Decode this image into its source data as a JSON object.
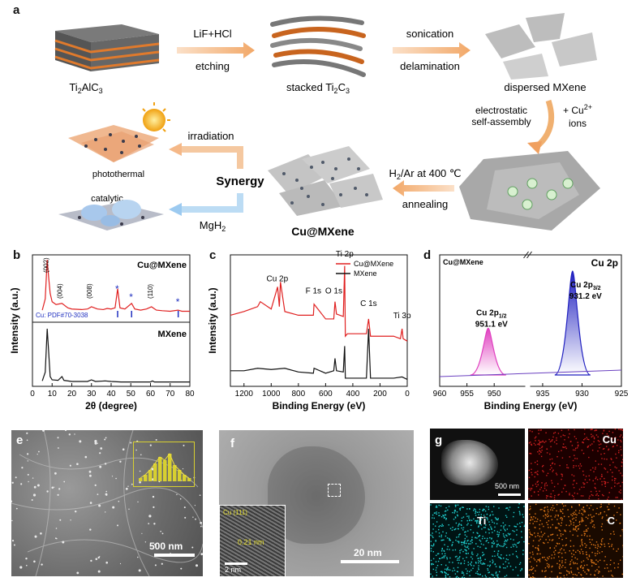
{
  "panel_a": {
    "label": "a",
    "ti2alc3": "Ti",
    "ti2alc3_sub": "2",
    "ti2alc3_rest": "AlC",
    "ti2alc3_sub2": "3",
    "etch_top": "LiF+HCl",
    "etch_bottom": "etching",
    "stacked_prefix": "stacked Ti",
    "stacked_sub1": "2",
    "stacked_mid": "C",
    "stacked_sub2": "3",
    "son_top": "sonication",
    "son_bottom": "delamination",
    "dispersed": "dispersed MXene",
    "elec1": "electrostatic",
    "elec2": "self-assembly",
    "cu_plus": "+ Cu",
    "cu_sup": "2+",
    "ions": "ions",
    "anneal_top_prefix": "H",
    "anneal_top_sub": "2",
    "anneal_top_rest": "/Ar at 400 ℃",
    "anneal_bottom": "annealing",
    "product": "Cu@MXene",
    "synergy": "Synergy",
    "irradiation": "irradiation",
    "mgh2_prefix": "MgH",
    "mgh2_sub": "2",
    "photothermal": "photothermal",
    "catalytic": "catalytic"
  },
  "panel_b": {
    "label": "b",
    "chart_data": {
      "type": "line",
      "xlabel": "2θ (degree)",
      "ylabel": "Intensity (a.u.)",
      "xlim": [
        0,
        80
      ],
      "xticks": [
        "0",
        "10",
        "20",
        "30",
        "40",
        "50",
        "60",
        "70",
        "80"
      ],
      "series": [
        {
          "name": "Cu@MXene",
          "color": "#e02020",
          "x": [
            5,
            6.5,
            7.5,
            8.2,
            9,
            10,
            12,
            15,
            18,
            20,
            25,
            28,
            30,
            33,
            36,
            38,
            40,
            42,
            43.3,
            44.5,
            47,
            50.4,
            52,
            55,
            58,
            60.5,
            63,
            66,
            70,
            74,
            76,
            80
          ],
          "y": [
            10,
            30,
            100,
            70,
            40,
            25,
            20,
            22,
            14,
            12,
            11,
            12,
            16,
            12,
            11,
            13,
            12,
            14,
            48,
            14,
            12,
            22,
            12,
            10,
            12,
            16,
            10,
            9,
            8,
            10,
            8,
            8
          ]
        },
        {
          "name": "MXene",
          "color": "#111111",
          "x": [
            5,
            6.5,
            7.5,
            8.2,
            9,
            10,
            13,
            15,
            16,
            20,
            28,
            30,
            32,
            37,
            40,
            45,
            60,
            61,
            62,
            70,
            80
          ],
          "y": [
            4,
            20,
            100,
            60,
            12,
            6,
            5,
            12,
            5,
            3,
            3,
            6,
            3,
            4,
            3,
            2,
            2,
            4,
            2,
            2,
            2
          ]
        }
      ],
      "annotations": [
        "(002)",
        "(004)",
        "(008)",
        "(110)"
      ],
      "reference": {
        "label": "Cu:  PDF#70-3038",
        "x": [
          43.3,
          50.4,
          74.1
        ]
      }
    }
  },
  "panel_c": {
    "label": "c",
    "chart_data": {
      "type": "line",
      "xlabel": "Binding Energy (eV)",
      "ylabel": "Intensity (a.u.)",
      "xlim": [
        1300,
        0
      ],
      "xticks": [
        "1200",
        "1000",
        "800",
        "600",
        "400",
        "200",
        "0"
      ],
      "series": [
        {
          "name": "Cu@MXene",
          "color": "#e02020",
          "x": [
            1300,
            1200,
            1100,
            1080,
            1000,
            953,
            940,
            932,
            900,
            800,
            690,
            685,
            600,
            540,
            531,
            520,
            470,
            460,
            455,
            440,
            300,
            284,
            270,
            100,
            50,
            38,
            30,
            0
          ],
          "y": [
            55,
            58,
            62,
            66,
            60,
            78,
            62,
            82,
            58,
            55,
            55,
            64,
            52,
            52,
            66,
            56,
            54,
            95,
            38,
            40,
            40,
            52,
            38,
            38,
            36,
            44,
            36,
            34
          ]
        },
        {
          "name": "MXene",
          "color": "#111111",
          "x": [
            1300,
            1200,
            1100,
            1000,
            900,
            800,
            690,
            685,
            600,
            540,
            531,
            520,
            470,
            460,
            455,
            440,
            300,
            284,
            270,
            100,
            38,
            0
          ],
          "y": [
            10,
            10,
            12,
            11,
            12,
            9,
            8,
            12,
            8,
            10,
            20,
            10,
            9,
            30,
            4,
            4,
            4,
            44,
            4,
            4,
            5,
            3
          ]
        }
      ],
      "annotations": [
        "Cu 2p",
        "F 1s",
        "O 1s",
        "Ti 2p",
        "C 1s",
        "Ti 3p"
      ]
    }
  },
  "panel_d": {
    "label": "d",
    "chart_data": {
      "type": "line",
      "xlabel": "Binding Energy (eV)",
      "xticks": [
        "960",
        "955",
        "950",
        "935",
        "930",
        "925"
      ],
      "title_left": "Cu@MXene",
      "title_right": "Cu 2p",
      "peaks": [
        {
          "label": "Cu 2p",
          "sub": "1/2",
          "energy": "951.1 eV",
          "x": 951.1,
          "height": 0.45,
          "color": "#e040c0"
        },
        {
          "label": "Cu 2p",
          "sub": "3/2",
          "energy": "931.2 eV",
          "x": 931.2,
          "height": 1.0,
          "color": "#2020c0"
        }
      ]
    }
  },
  "panel_e": {
    "label": "e",
    "scale": "500 nm"
  },
  "panel_f": {
    "label": "f",
    "scale": "20 nm",
    "inset_scale": "2 nm",
    "inset_plane": "Cu (111)",
    "inset_d": "0.21 nm"
  },
  "panel_g": {
    "label": "g",
    "scale": "500 nm",
    "maps": [
      "Cu",
      "Ti",
      "C"
    ]
  }
}
